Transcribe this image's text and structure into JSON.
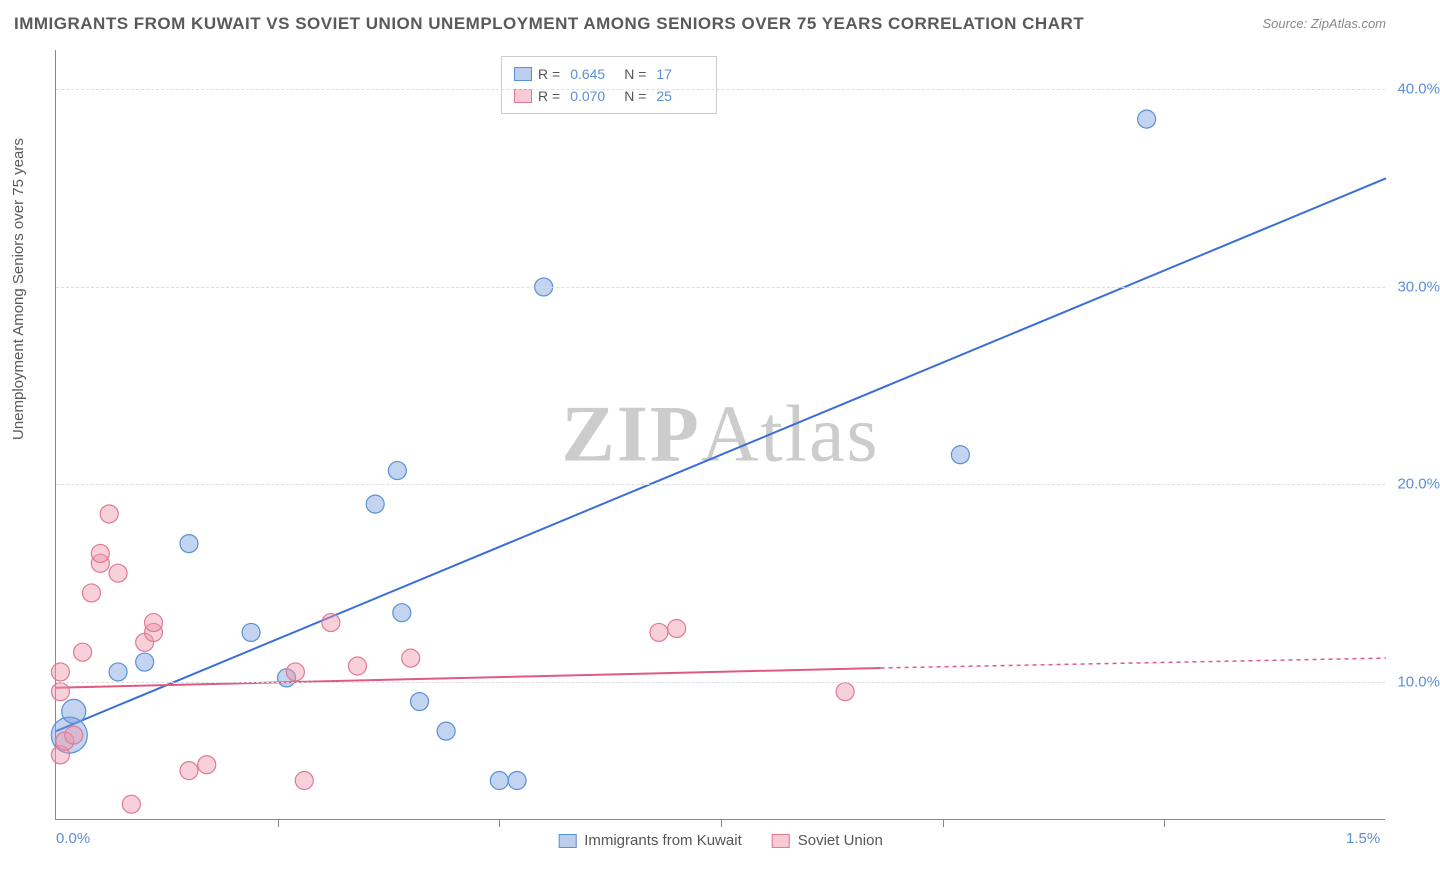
{
  "title": "IMMIGRANTS FROM KUWAIT VS SOVIET UNION UNEMPLOYMENT AMONG SENIORS OVER 75 YEARS CORRELATION CHART",
  "source": "Source: ZipAtlas.com",
  "watermark": "ZIPAtlas",
  "y_axis_label": "Unemployment Among Seniors over 75 years",
  "chart": {
    "type": "scatter",
    "background_color": "#ffffff",
    "grid_color": "#dddddd",
    "axis_color": "#888888",
    "tick_label_color": "#5b8fd6",
    "label_color": "#5a5a5a",
    "xlim": [
      0.0,
      1.5
    ],
    "ylim": [
      3.0,
      42.0
    ],
    "x_ticks": [
      0.0,
      1.5
    ],
    "x_tick_labels": [
      "0.0%",
      "1.5%"
    ],
    "y_ticks": [
      10.0,
      20.0,
      30.0,
      40.0
    ],
    "y_tick_labels": [
      "10.0%",
      "20.0%",
      "30.0%",
      "40.0%"
    ],
    "x_minor_ticks": [
      0.25,
      0.5,
      0.75,
      1.0,
      1.25
    ],
    "legend_top": {
      "rows": [
        {
          "swatch": "blue",
          "r_label": "R =",
          "r_val": "0.645",
          "n_label": "N =",
          "n_val": "17"
        },
        {
          "swatch": "pink",
          "r_label": "R =",
          "r_val": "0.070",
          "n_label": "N =",
          "n_val": "25"
        }
      ]
    },
    "legend_bottom": [
      {
        "swatch": "blue",
        "label": "Immigrants from Kuwait"
      },
      {
        "swatch": "pink",
        "label": "Soviet Union"
      }
    ],
    "series": [
      {
        "name": "Immigrants from Kuwait",
        "color_fill": "rgba(120,160,220,0.45)",
        "color_stroke": "#5b8fd6",
        "marker_radius": 9,
        "trend": {
          "x1": 0.0,
          "y1": 7.5,
          "x2": 1.5,
          "y2": 35.5,
          "color": "#3a6fd8",
          "width": 2,
          "dash": "none"
        },
        "points": [
          {
            "x": 0.015,
            "y": 7.3,
            "r": 18
          },
          {
            "x": 0.02,
            "y": 8.5,
            "r": 12
          },
          {
            "x": 0.07,
            "y": 10.5
          },
          {
            "x": 0.1,
            "y": 11.0
          },
          {
            "x": 0.15,
            "y": 17.0
          },
          {
            "x": 0.22,
            "y": 12.5
          },
          {
            "x": 0.26,
            "y": 10.2
          },
          {
            "x": 0.36,
            "y": 19.0
          },
          {
            "x": 0.385,
            "y": 20.7
          },
          {
            "x": 0.39,
            "y": 13.5
          },
          {
            "x": 0.41,
            "y": 9.0
          },
          {
            "x": 0.44,
            "y": 7.5
          },
          {
            "x": 0.5,
            "y": 5.0
          },
          {
            "x": 0.52,
            "y": 5.0
          },
          {
            "x": 0.55,
            "y": 30.0
          },
          {
            "x": 1.02,
            "y": 21.5
          },
          {
            "x": 1.23,
            "y": 38.5
          }
        ]
      },
      {
        "name": "Soviet Union",
        "color_fill": "rgba(240,150,170,0.45)",
        "color_stroke": "#e07a94",
        "marker_radius": 9,
        "trend": {
          "x1": 0.0,
          "y1": 9.7,
          "x2": 0.93,
          "y2": 10.7,
          "color": "#e05a80",
          "width": 2,
          "dash": "none",
          "extend": {
            "x1": 0.93,
            "y1": 10.7,
            "x2": 1.5,
            "y2": 11.2,
            "dash": "4,4"
          }
        },
        "points": [
          {
            "x": 0.005,
            "y": 6.3
          },
          {
            "x": 0.005,
            "y": 9.5
          },
          {
            "x": 0.005,
            "y": 10.5
          },
          {
            "x": 0.01,
            "y": 7.0
          },
          {
            "x": 0.02,
            "y": 7.3
          },
          {
            "x": 0.03,
            "y": 11.5
          },
          {
            "x": 0.04,
            "y": 14.5
          },
          {
            "x": 0.05,
            "y": 16.0
          },
          {
            "x": 0.05,
            "y": 16.5
          },
          {
            "x": 0.06,
            "y": 18.5
          },
          {
            "x": 0.07,
            "y": 15.5
          },
          {
            "x": 0.085,
            "y": 3.8
          },
          {
            "x": 0.1,
            "y": 12.0
          },
          {
            "x": 0.11,
            "y": 12.5
          },
          {
            "x": 0.11,
            "y": 13.0
          },
          {
            "x": 0.15,
            "y": 5.5
          },
          {
            "x": 0.17,
            "y": 5.8
          },
          {
            "x": 0.27,
            "y": 10.5
          },
          {
            "x": 0.28,
            "y": 5.0
          },
          {
            "x": 0.31,
            "y": 13.0
          },
          {
            "x": 0.34,
            "y": 10.8
          },
          {
            "x": 0.4,
            "y": 11.2
          },
          {
            "x": 0.68,
            "y": 12.5
          },
          {
            "x": 0.7,
            "y": 12.7
          },
          {
            "x": 0.89,
            "y": 9.5
          }
        ]
      }
    ]
  }
}
